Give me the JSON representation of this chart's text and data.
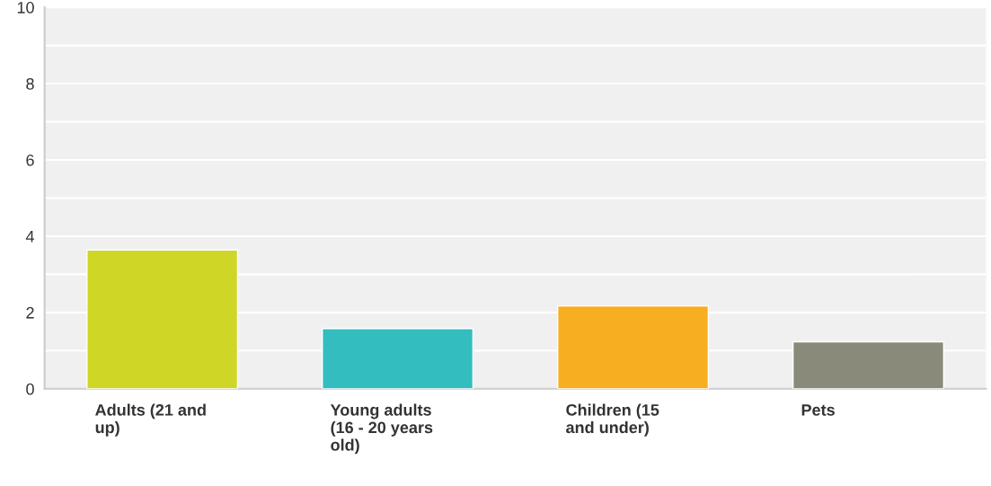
{
  "chart_data": {
    "type": "bar",
    "categories": [
      "Adults (21 and\nup)",
      "Young adults\n(16 - 20 years\nold)",
      "Children (15\nand under)",
      "Pets"
    ],
    "values": [
      3.64,
      1.58,
      2.17,
      1.23
    ],
    "colors": [
      "#cfd626",
      "#33bdbf",
      "#f7ae20",
      "#8a8a7a"
    ],
    "ylim": [
      0,
      10
    ],
    "yticks": [
      0,
      {
        "value": 1,
        "label": null
      },
      2,
      {
        "value": 3,
        "label": null
      },
      4,
      {
        "value": 5,
        "label": null
      },
      6,
      {
        "value": 7,
        "label": null
      },
      8,
      {
        "value": 9,
        "label": null
      },
      10
    ],
    "grid": "y"
  }
}
